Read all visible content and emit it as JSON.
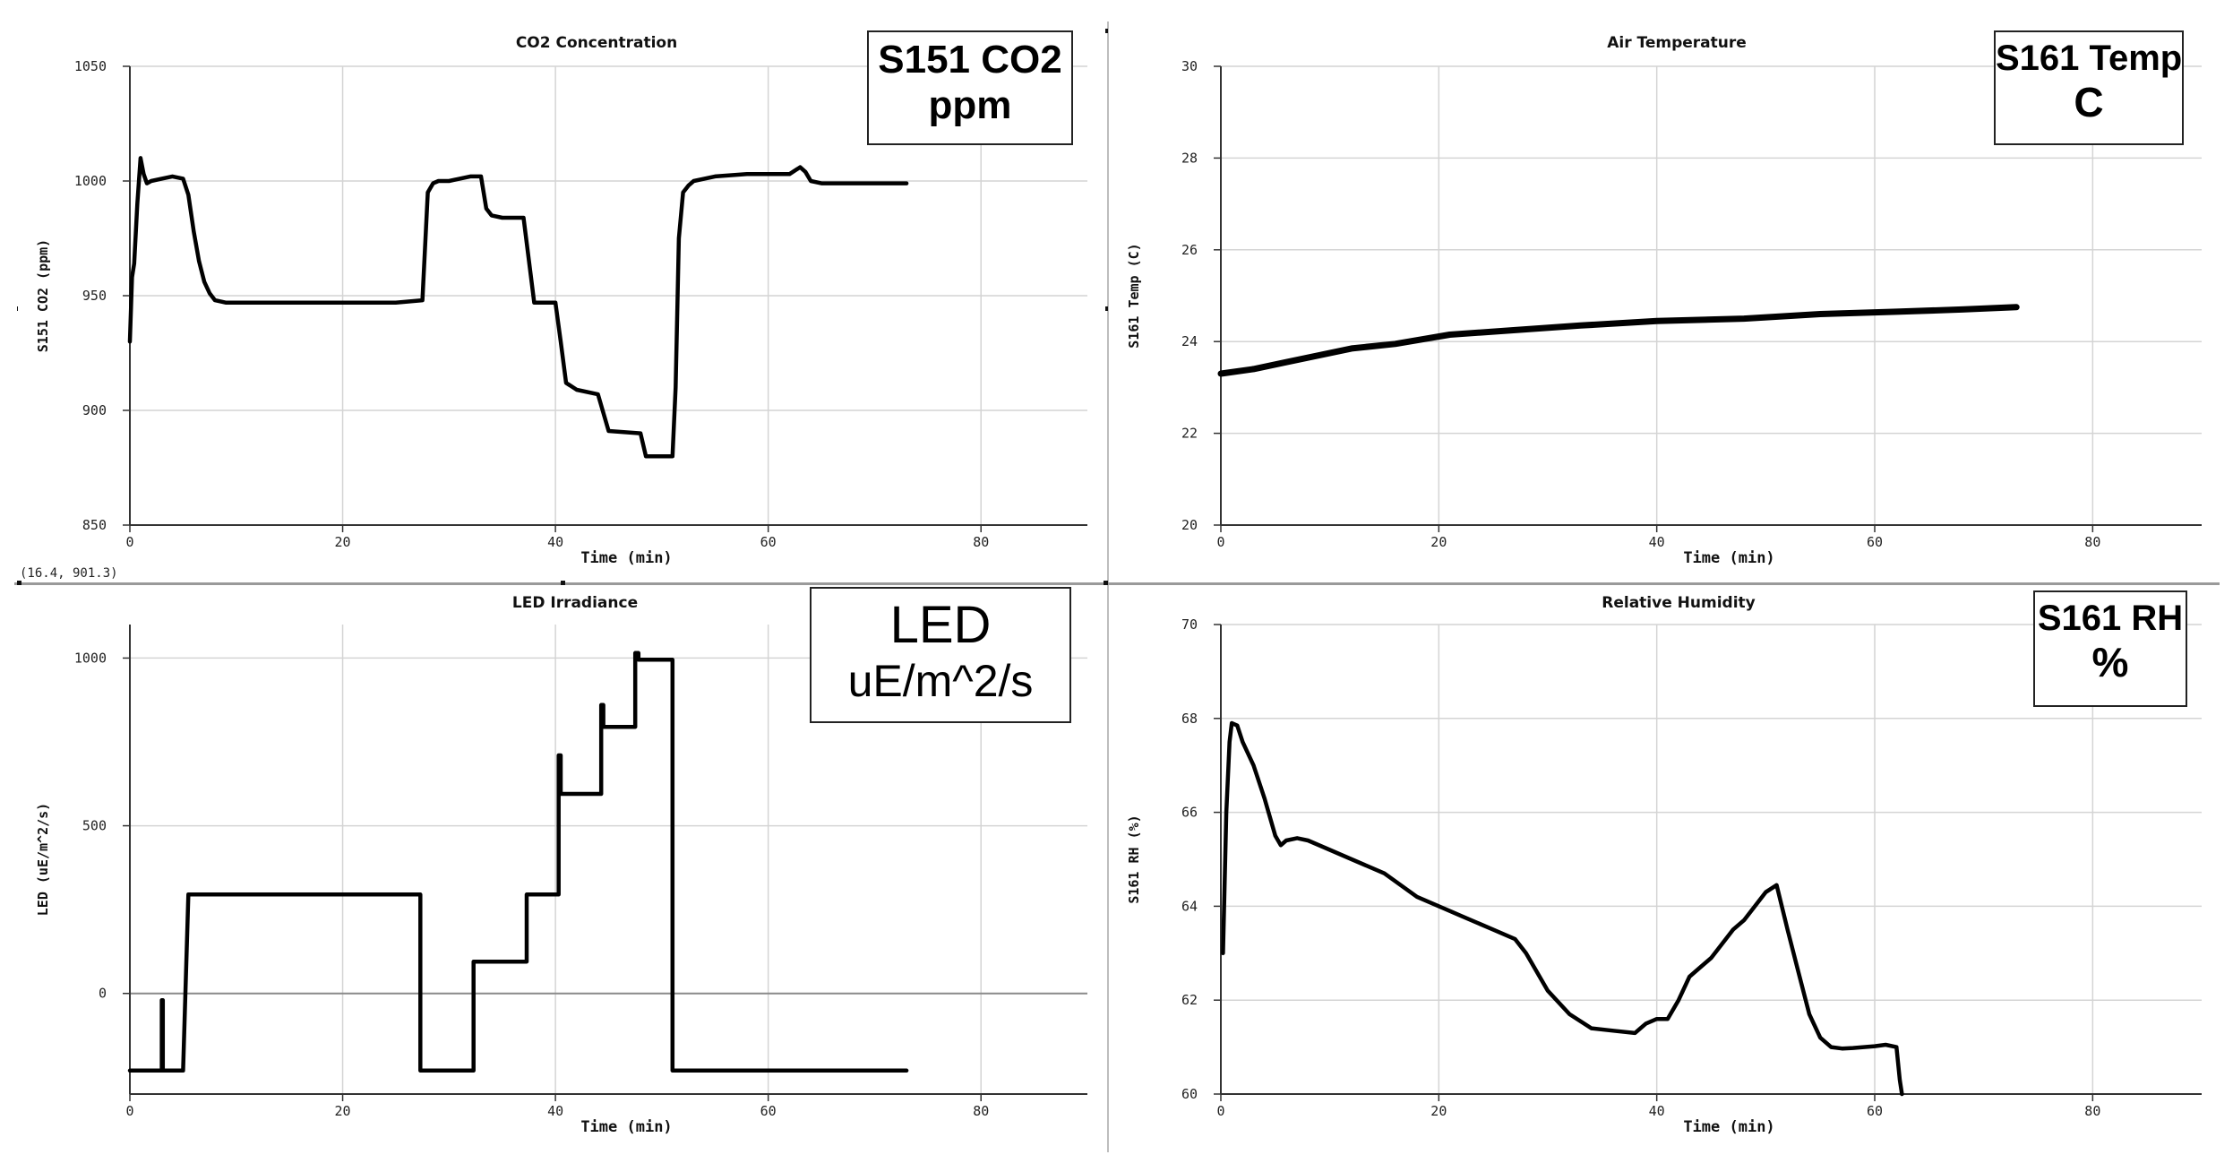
{
  "charts": [
    {
      "id": "co2",
      "title": "CO2 Concentration",
      "xlabel": "Time (min)",
      "ylabel": "S151 CO2 (ppm)",
      "overlay": [
        "S151 CO2",
        "ppm"
      ],
      "readout": "(16.4, 901.3)"
    },
    {
      "id": "temp",
      "title": "Air Temperature",
      "xlabel": "Time (min)",
      "ylabel": "S161 Temp (C)",
      "overlay": [
        "S161 Temp",
        "C"
      ]
    },
    {
      "id": "led",
      "title": "LED Irradiance",
      "xlabel": "Time (min)",
      "ylabel": "LED (uE/m^2/s)",
      "overlay": [
        "LED",
        "uE/m^2/s"
      ]
    },
    {
      "id": "rh",
      "title": "Relative Humidity",
      "xlabel": "Time (min)",
      "ylabel": "S161 RH (%)",
      "overlay": [
        "S161 RH",
        "%"
      ]
    }
  ],
  "chart_data": [
    {
      "type": "line",
      "title": "CO2 Concentration",
      "xlabel": "Time (min)",
      "ylabel": "S151 CO2 (ppm)",
      "xlim": [
        0,
        90
      ],
      "ylim": [
        850,
        1050
      ],
      "xticks": [
        0,
        20,
        40,
        60,
        80
      ],
      "yticks": [
        850,
        900,
        950,
        1000,
        1050
      ],
      "grid": true,
      "series": [
        {
          "x": [
            0,
            0.2,
            0.4,
            0.7,
            1,
            1.3,
            1.6,
            2,
            3,
            4,
            5,
            5.5,
            6,
            6.5,
            7,
            7.5,
            8,
            9,
            10,
            15,
            20,
            25,
            27.5,
            28,
            28.5,
            29,
            30,
            32,
            33,
            33.5,
            34,
            35,
            37,
            38,
            38.5,
            40,
            40.5,
            41,
            42,
            44,
            45,
            48,
            48.5,
            50,
            51,
            51.3,
            51.6,
            52,
            52.5,
            53,
            55,
            58,
            60,
            61,
            62,
            63,
            63.5,
            64,
            65,
            68,
            70,
            73
          ],
          "y": [
            930,
            958,
            964,
            990,
            1010,
            1003,
            999,
            1000,
            1001,
            1002,
            1001,
            994,
            978,
            965,
            956,
            951,
            948,
            947,
            947,
            947,
            947,
            947,
            948,
            995,
            999,
            1000,
            1000,
            1002,
            1002,
            988,
            985,
            984,
            984,
            947,
            947,
            947,
            930,
            912,
            909,
            907,
            891,
            890,
            880,
            880,
            880,
            910,
            975,
            995,
            998,
            1000,
            1002,
            1003,
            1003,
            1003,
            1003,
            1006,
            1004,
            1000,
            999,
            999,
            999,
            999
          ]
        }
      ]
    },
    {
      "type": "line",
      "title": "Air Temperature",
      "xlabel": "Time (min)",
      "ylabel": "S161 Temp (C)",
      "xlim": [
        0,
        90
      ],
      "ylim": [
        20,
        30
      ],
      "xticks": [
        0,
        20,
        40,
        60,
        80
      ],
      "yticks": [
        20,
        22,
        24,
        26,
        28,
        30
      ],
      "grid": true,
      "series": [
        {
          "x": [
            0,
            3,
            6,
            9,
            12,
            16,
            21,
            27,
            33,
            40,
            48,
            55,
            62,
            68,
            73
          ],
          "y": [
            23.3,
            23.4,
            23.55,
            23.7,
            23.85,
            23.95,
            24.15,
            24.25,
            24.35,
            24.45,
            24.5,
            24.6,
            24.65,
            24.7,
            24.75
          ]
        }
      ]
    },
    {
      "type": "line",
      "title": "LED Irradiance",
      "xlabel": "Time (min)",
      "ylabel": "LED (uE/m^2/s)",
      "xlim": [
        0,
        90
      ],
      "ylim": [
        -300,
        1100
      ],
      "xticks": [
        0,
        20,
        40,
        60,
        80
      ],
      "yticks": [
        0,
        500,
        1000
      ],
      "grid": true,
      "series": [
        {
          "x": [
            0,
            3,
            3,
            3.1,
            3.1,
            5,
            5.5,
            27.3,
            27.3,
            32.3,
            32.3,
            37.3,
            37.3,
            40.3,
            40.3,
            40.5,
            40.5,
            44.3,
            44.3,
            44.5,
            44.5,
            47.5,
            47.5,
            47.8,
            47.8,
            51,
            51,
            73
          ],
          "y": [
            -230,
            -230,
            -20,
            -20,
            -230,
            -230,
            295,
            295,
            -230,
            -230,
            95,
            95,
            295,
            295,
            710,
            710,
            595,
            595,
            860,
            860,
            795,
            795,
            1015,
            1015,
            995,
            995,
            -230,
            -230
          ]
        }
      ]
    },
    {
      "type": "line",
      "title": "Relative Humidity",
      "xlabel": "Time (min)",
      "ylabel": "S161 RH (%)",
      "xlim": [
        0,
        90
      ],
      "ylim": [
        60,
        70
      ],
      "xticks": [
        0,
        20,
        40,
        60,
        80
      ],
      "yticks": [
        60,
        62,
        64,
        66,
        68,
        70
      ],
      "grid": true,
      "series": [
        {
          "x": [
            0.2,
            0.5,
            0.8,
            1,
            1.5,
            2,
            3,
            4,
            5,
            5.5,
            6,
            7,
            8,
            10,
            12,
            15,
            18,
            22,
            25,
            27,
            28,
            30,
            32,
            34,
            36,
            38,
            39,
            40,
            41,
            42,
            43,
            44,
            45,
            46,
            47,
            48,
            49,
            50,
            51,
            52,
            53,
            54,
            55,
            56,
            57,
            58,
            59,
            60,
            61,
            62,
            62.3,
            62.5
          ],
          "y": [
            63,
            66,
            67.5,
            67.9,
            67.85,
            67.5,
            67,
            66.3,
            65.5,
            65.3,
            65.4,
            65.45,
            65.4,
            65.2,
            65,
            64.7,
            64.2,
            63.8,
            63.5,
            63.3,
            63,
            62.2,
            61.7,
            61.4,
            61.35,
            61.3,
            61.5,
            61.6,
            61.6,
            62,
            62.5,
            62.7,
            62.9,
            63.2,
            63.5,
            63.7,
            64,
            64.3,
            64.45,
            63.5,
            62.6,
            61.7,
            61.2,
            61,
            60.97,
            60.98,
            61,
            61.02,
            61.05,
            61,
            60.3,
            60
          ]
        }
      ]
    }
  ]
}
